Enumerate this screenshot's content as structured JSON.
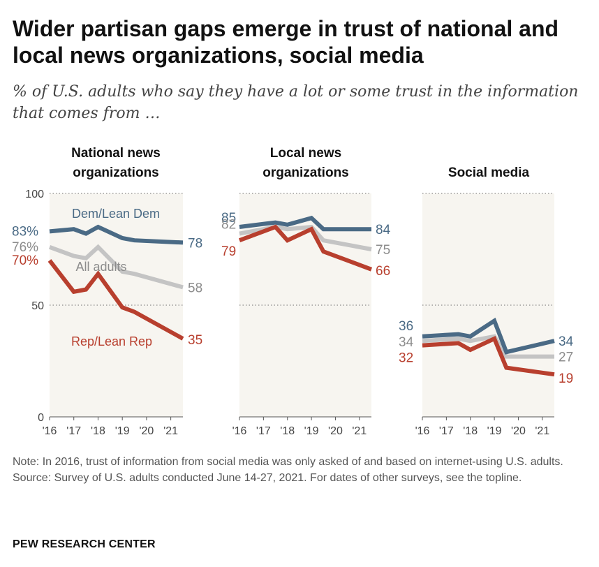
{
  "title_lines": [
    "Wider partisan gaps emerge in trust of national and",
    "local news organizations, social media"
  ],
  "subtitle_lines": [
    "% of U.S. adults who say they have a lot or some trust in the information",
    "that comes from …"
  ],
  "colors": {
    "dem": "#4a6a85",
    "all": "#c4c4c4",
    "rep": "#b83f2e",
    "panel_bg": "#f7f5f0",
    "grid": "#8a8a8a"
  },
  "chart_data": [
    {
      "type": "line",
      "title_lines": [
        "National news",
        "organizations"
      ],
      "x": [
        2016.0,
        2017.0,
        2017.5,
        2018.0,
        2019.0,
        2019.5,
        2021.5
      ],
      "xtick_labels": [
        "'16",
        "'17",
        "'18",
        "'19",
        "'20",
        "'21"
      ],
      "ylim": [
        0,
        100
      ],
      "ytick_values": [
        0,
        50,
        100
      ],
      "ytick_labels": [
        "0",
        "50",
        "100"
      ],
      "series": [
        {
          "name": "Dem/Lean Dem",
          "values": [
            83,
            84,
            82,
            85,
            80,
            79,
            78
          ],
          "start_label": "83%",
          "end_label": "78"
        },
        {
          "name": "All adults",
          "values": [
            76,
            72,
            71,
            76,
            65,
            64,
            58
          ],
          "start_label": "76%",
          "end_label": "58"
        },
        {
          "name": "Rep/Lean Rep",
          "values": [
            70,
            56,
            57,
            64,
            49,
            47,
            35
          ],
          "start_label": "70%",
          "end_label": "35"
        }
      ],
      "annotations": [
        "Dem/Lean Dem",
        "All adults",
        "Rep/Lean Rep"
      ]
    },
    {
      "type": "line",
      "title_lines": [
        "Local news",
        "organizations"
      ],
      "x": [
        2016.0,
        2017.5,
        2018.0,
        2019.0,
        2019.5,
        2021.5
      ],
      "xtick_labels": [
        "'16",
        "'17",
        "'18",
        "'19",
        "'20",
        "'21"
      ],
      "ylim": [
        0,
        100
      ],
      "series": [
        {
          "name": "Dem/Lean Dem",
          "values": [
            85,
            87,
            86,
            89,
            84,
            84
          ],
          "start_label": "85",
          "end_label": "84"
        },
        {
          "name": "All adults",
          "values": [
            82,
            85,
            84,
            85,
            79,
            75
          ],
          "start_label": "82",
          "end_label": "75"
        },
        {
          "name": "Rep/Lean Rep",
          "values": [
            79,
            85,
            79,
            84,
            74,
            66
          ],
          "start_label": "79",
          "end_label": "66"
        }
      ]
    },
    {
      "type": "line",
      "title_lines": [
        "Social media"
      ],
      "x": [
        2016.0,
        2017.5,
        2018.0,
        2019.0,
        2019.5,
        2021.5
      ],
      "xtick_labels": [
        "'16",
        "'17",
        "'18",
        "'19",
        "'20",
        "'21"
      ],
      "ylim": [
        0,
        100
      ],
      "series": [
        {
          "name": "Dem/Lean Dem",
          "values": [
            36,
            37,
            36,
            43,
            29,
            34
          ],
          "start_label": "36",
          "end_label": "34"
        },
        {
          "name": "All adults",
          "values": [
            34,
            35,
            34,
            36,
            27,
            27
          ],
          "start_label": "34",
          "end_label": "27"
        },
        {
          "name": "Rep/Lean Rep",
          "values": [
            32,
            33,
            30,
            35,
            22,
            19
          ],
          "start_label": "32",
          "end_label": "19"
        }
      ]
    }
  ],
  "note": "Note: In 2016, trust of information from social media was only asked of and based on internet-using U.S. adults.",
  "source": "Source: Survey of U.S. adults conducted June 14-27, 2021. For dates of other surveys, see the topline.",
  "brand": "PEW RESEARCH CENTER"
}
